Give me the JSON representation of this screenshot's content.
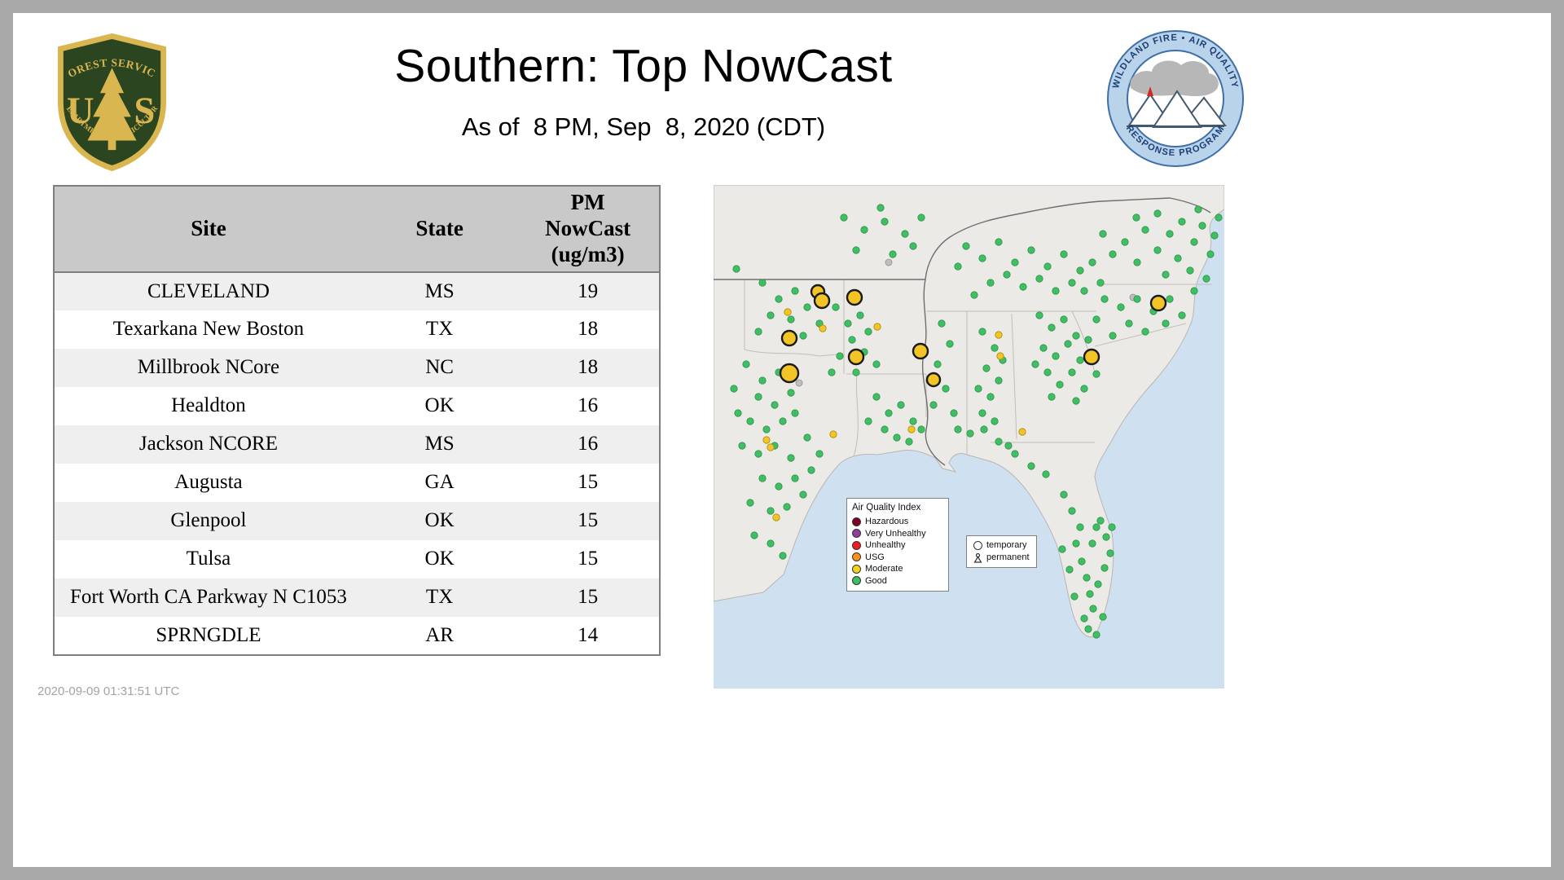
{
  "page": {
    "title": "Southern: Top NowCast",
    "subtitle": "As of  8 PM, Sep  8, 2020 (CDT)",
    "generated": "2020-09-09 01:31:51 UTC"
  },
  "logos": {
    "usfs": {
      "arc_top": "FOREST SERVICE",
      "letter_u": "U",
      "letter_s": "S",
      "arc_bottom": "DEPARTMENT OF AGRICULTURE"
    },
    "wfaqrp": {
      "arc_top": "WILDLAND FIRE • AIR QUALITY",
      "arc_bottom": "RESPONSE PROGRAM"
    }
  },
  "table": {
    "headers": [
      "Site",
      "State",
      "PM\nNowCast\n(ug/m3)"
    ],
    "rows": [
      {
        "site": "CLEVELAND",
        "state": "MS",
        "value": "19"
      },
      {
        "site": "Texarkana New Boston",
        "state": "TX",
        "value": "18"
      },
      {
        "site": "Millbrook NCore",
        "state": "NC",
        "value": "18"
      },
      {
        "site": "Healdton",
        "state": "OK",
        "value": "16"
      },
      {
        "site": "Jackson NCORE",
        "state": "MS",
        "value": "16"
      },
      {
        "site": "Augusta",
        "state": "GA",
        "value": "15"
      },
      {
        "site": "Glenpool",
        "state": "OK",
        "value": "15"
      },
      {
        "site": "Tulsa",
        "state": "OK",
        "value": "15"
      },
      {
        "site": "Fort Worth CA Parkway N C1053",
        "state": "TX",
        "value": "15"
      },
      {
        "site": "SPRNGDLE",
        "state": "AR",
        "value": "14"
      }
    ]
  },
  "chart_data": {
    "type": "table",
    "title": "Southern: Top NowCast",
    "subtitle": "As of  8 PM, Sep  8, 2020 (CDT)",
    "columns": [
      "Site",
      "State",
      "PM NowCast (ug/m3)"
    ],
    "rows": [
      [
        "CLEVELAND",
        "MS",
        19
      ],
      [
        "Texarkana New Boston",
        "TX",
        18
      ],
      [
        "Millbrook NCore",
        "NC",
        18
      ],
      [
        "Healdton",
        "OK",
        16
      ],
      [
        "Jackson NCORE",
        "MS",
        16
      ],
      [
        "Augusta",
        "GA",
        15
      ],
      [
        "Glenpool",
        "OK",
        15
      ],
      [
        "Tulsa",
        "OK",
        15
      ],
      [
        "Fort Worth CA Parkway N C1053",
        "TX",
        15
      ],
      [
        "SPRNGDLE",
        "AR",
        14
      ]
    ]
  },
  "map": {
    "legend": {
      "title": "Air Quality Index",
      "items": [
        {
          "label": "Hazardous",
          "color": "#7e0023"
        },
        {
          "label": "Very Unhealthy",
          "color": "#8f3f97"
        },
        {
          "label": "Unhealthy",
          "color": "#ed1c24"
        },
        {
          "label": "USG",
          "color": "#f7941d"
        },
        {
          "label": "Moderate",
          "color": "#f2d418"
        },
        {
          "label": "Good",
          "color": "#3fbf62"
        }
      ]
    },
    "marker_legend": {
      "temporary": "temporary",
      "permanent": "permanent"
    },
    "colors": {
      "good": "#3fbf62",
      "moderate": "#f2c426",
      "inactive": "#bfbfbf",
      "water": "#cfe0f0",
      "land": "#eceae6"
    },
    "dots": {
      "good": [
        [
          519,
          40
        ],
        [
          530,
          55
        ],
        [
          545,
          35
        ],
        [
          560,
          60
        ],
        [
          575,
          45
        ],
        [
          590,
          70
        ],
        [
          600,
          50
        ],
        [
          610,
          85
        ],
        [
          570,
          90
        ],
        [
          545,
          80
        ],
        [
          520,
          95
        ],
        [
          555,
          110
        ],
        [
          585,
          105
        ],
        [
          605,
          115
        ],
        [
          595,
          30
        ],
        [
          615,
          62
        ],
        [
          478,
          60
        ],
        [
          490,
          85
        ],
        [
          505,
          70
        ],
        [
          620,
          40
        ],
        [
          310,
          75
        ],
        [
          330,
          90
        ],
        [
          350,
          70
        ],
        [
          370,
          95
        ],
        [
          390,
          80
        ],
        [
          410,
          100
        ],
        [
          430,
          85
        ],
        [
          450,
          105
        ],
        [
          340,
          120
        ],
        [
          360,
          110
        ],
        [
          380,
          125
        ],
        [
          400,
          115
        ],
        [
          420,
          130
        ],
        [
          440,
          120
        ],
        [
          300,
          100
        ],
        [
          320,
          135
        ],
        [
          465,
          95
        ],
        [
          455,
          130
        ],
        [
          475,
          120
        ],
        [
          480,
          140
        ],
        [
          500,
          150
        ],
        [
          520,
          140
        ],
        [
          540,
          155
        ],
        [
          560,
          140
        ],
        [
          510,
          170
        ],
        [
          530,
          180
        ],
        [
          490,
          185
        ],
        [
          555,
          170
        ],
        [
          575,
          160
        ],
        [
          470,
          165
        ],
        [
          590,
          130
        ],
        [
          400,
          160
        ],
        [
          415,
          175
        ],
        [
          430,
          165
        ],
        [
          445,
          185
        ],
        [
          405,
          200
        ],
        [
          420,
          210
        ],
        [
          435,
          195
        ],
        [
          450,
          215
        ],
        [
          410,
          230
        ],
        [
          425,
          245
        ],
        [
          440,
          230
        ],
        [
          455,
          250
        ],
        [
          395,
          220
        ],
        [
          460,
          190
        ],
        [
          470,
          232
        ],
        [
          415,
          260
        ],
        [
          445,
          265
        ],
        [
          330,
          180
        ],
        [
          345,
          200
        ],
        [
          335,
          225
        ],
        [
          350,
          240
        ],
        [
          340,
          260
        ],
        [
          325,
          250
        ],
        [
          355,
          215
        ],
        [
          330,
          280
        ],
        [
          345,
          290
        ],
        [
          280,
          170
        ],
        [
          290,
          195
        ],
        [
          275,
          220
        ],
        [
          285,
          250
        ],
        [
          270,
          270
        ],
        [
          295,
          280
        ],
        [
          265,
          240
        ],
        [
          200,
          260
        ],
        [
          215,
          280
        ],
        [
          230,
          270
        ],
        [
          245,
          290
        ],
        [
          210,
          300
        ],
        [
          225,
          310
        ],
        [
          190,
          290
        ],
        [
          240,
          315
        ],
        [
          255,
          300
        ],
        [
          150,
          150
        ],
        [
          165,
          170
        ],
        [
          180,
          160
        ],
        [
          170,
          190
        ],
        [
          155,
          210
        ],
        [
          185,
          205
        ],
        [
          145,
          230
        ],
        [
          175,
          230
        ],
        [
          200,
          220
        ],
        [
          190,
          180
        ],
        [
          160,
          40
        ],
        [
          185,
          55
        ],
        [
          210,
          45
        ],
        [
          235,
          60
        ],
        [
          255,
          40
        ],
        [
          175,
          80
        ],
        [
          220,
          85
        ],
        [
          245,
          75
        ],
        [
          205,
          28
        ],
        [
          60,
          120
        ],
        [
          80,
          140
        ],
        [
          100,
          130
        ],
        [
          70,
          160
        ],
        [
          95,
          165
        ],
        [
          115,
          150
        ],
        [
          130,
          170
        ],
        [
          55,
          180
        ],
        [
          110,
          185
        ],
        [
          28,
          103
        ],
        [
          40,
          220
        ],
        [
          60,
          240
        ],
        [
          80,
          230
        ],
        [
          55,
          260
        ],
        [
          75,
          270
        ],
        [
          95,
          255
        ],
        [
          45,
          290
        ],
        [
          65,
          300
        ],
        [
          85,
          290
        ],
        [
          100,
          280
        ],
        [
          35,
          320
        ],
        [
          55,
          330
        ],
        [
          75,
          320
        ],
        [
          95,
          335
        ],
        [
          115,
          310
        ],
        [
          60,
          360
        ],
        [
          80,
          370
        ],
        [
          100,
          360
        ],
        [
          45,
          390
        ],
        [
          70,
          400
        ],
        [
          90,
          395
        ],
        [
          110,
          380
        ],
        [
          120,
          350
        ],
        [
          130,
          330
        ],
        [
          50,
          430
        ],
        [
          70,
          440
        ],
        [
          85,
          455
        ],
        [
          30,
          280
        ],
        [
          25,
          250
        ],
        [
          300,
          300
        ],
        [
          315,
          305
        ],
        [
          332,
          300
        ],
        [
          350,
          315
        ],
        [
          362,
          320
        ],
        [
          370,
          330
        ],
        [
          390,
          345
        ],
        [
          408,
          355
        ],
        [
          430,
          380
        ],
        [
          440,
          400
        ],
        [
          450,
          420
        ],
        [
          445,
          440
        ],
        [
          452,
          462
        ],
        [
          458,
          482
        ],
        [
          462,
          502
        ],
        [
          466,
          520
        ],
        [
          455,
          532
        ],
        [
          443,
          505
        ],
        [
          437,
          472
        ],
        [
          428,
          447
        ],
        [
          460,
          545
        ],
        [
          470,
          552
        ],
        [
          478,
          530
        ],
        [
          475,
          412
        ],
        [
          482,
          432
        ],
        [
          487,
          452
        ],
        [
          489,
          420
        ],
        [
          480,
          470
        ],
        [
          470,
          420
        ],
        [
          465,
          440
        ],
        [
          472,
          490
        ]
      ],
      "moderate": [
        [
          91,
          156
        ],
        [
          134,
          176
        ],
        [
          201,
          174
        ],
        [
          350,
          184
        ],
        [
          352,
          210
        ],
        [
          65,
          313
        ],
        [
          70,
          322
        ],
        [
          147,
          306
        ],
        [
          243,
          300
        ],
        [
          379,
          303
        ],
        [
          77,
          408
        ]
      ],
      "inactive": [
        [
          105,
          243
        ],
        [
          515,
          138
        ],
        [
          215,
          95
        ]
      ],
      "temporary_moderate": [
        [
          128,
          131,
          8
        ],
        [
          133,
          142,
          9
        ],
        [
          173,
          138,
          9
        ],
        [
          93,
          188,
          9
        ],
        [
          175,
          211,
          9
        ],
        [
          93,
          231,
          11
        ],
        [
          254,
          204,
          9
        ],
        [
          270,
          239,
          8
        ],
        [
          464,
          211,
          9
        ],
        [
          546,
          145,
          9
        ]
      ]
    }
  }
}
